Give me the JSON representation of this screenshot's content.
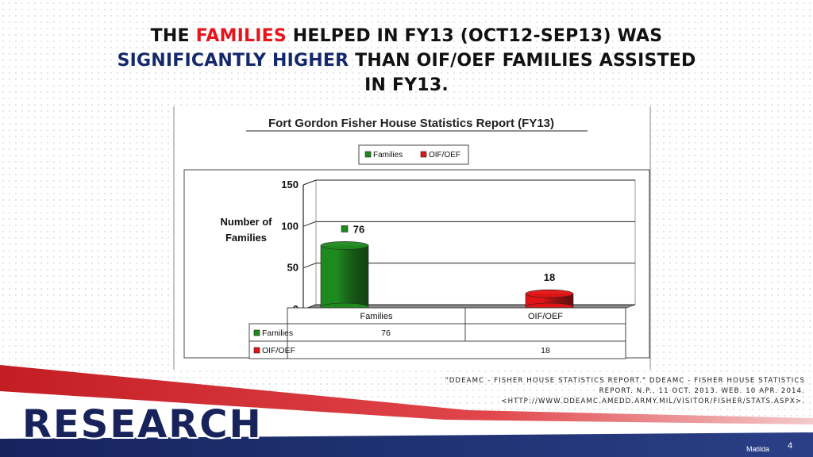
{
  "slide": {
    "title_parts": [
      "THE ",
      "FAMILIES",
      " HELPED IN FY13 (OCT12-SEP13) WAS",
      "SIGNIFICANTLY HIGHER",
      " THAN OIF/OEF FAMILIES ASSISTED",
      "IN FY13."
    ],
    "citation": "\"DDEAMC - FISHER HOUSE STATISTICS REPORT.\" DDEAMC - FISHER HOUSE STATISTICS REPORT. N.P., 11 OCT. 2013. WEB. 10 APR. 2014. <HTTP://WWW.DDEAMC.AMEDD.ARMY.MIL/VISITOR/FISHER/STATS.ASPX>.",
    "section_label": "RESEARCH",
    "author": "Matilda",
    "page_number": "4",
    "colors": {
      "title_red": "#e8141b",
      "title_blue": "#14296b",
      "research_blue": "#17235a",
      "band_red": "#d2222a",
      "band_blue": "#1c2f72"
    }
  },
  "chart_data": {
    "type": "bar",
    "title": "Fort Gordon Fisher House Statistics Report (FY13)",
    "ylabel": "Number of Families",
    "categories": [
      "Families",
      "OIF/OEF"
    ],
    "series": [
      {
        "name": "Families",
        "category": "Families",
        "value": 76,
        "color": "#1e8a1e"
      },
      {
        "name": "OIF/OEF",
        "category": "OIF/OEF",
        "value": 18,
        "color": "#e01414"
      }
    ],
    "ylim": [
      0,
      150
    ],
    "yticks": [
      0,
      50,
      100,
      150
    ],
    "legend": [
      "Families",
      "OIF/OEF"
    ],
    "legend_position": "top",
    "data_table": [
      {
        "label": "Families",
        "Families": "76",
        "OIF/OEF": ""
      },
      {
        "label": "OIF/OEF",
        "Families": "",
        "OIF/OEF": "18"
      }
    ]
  }
}
